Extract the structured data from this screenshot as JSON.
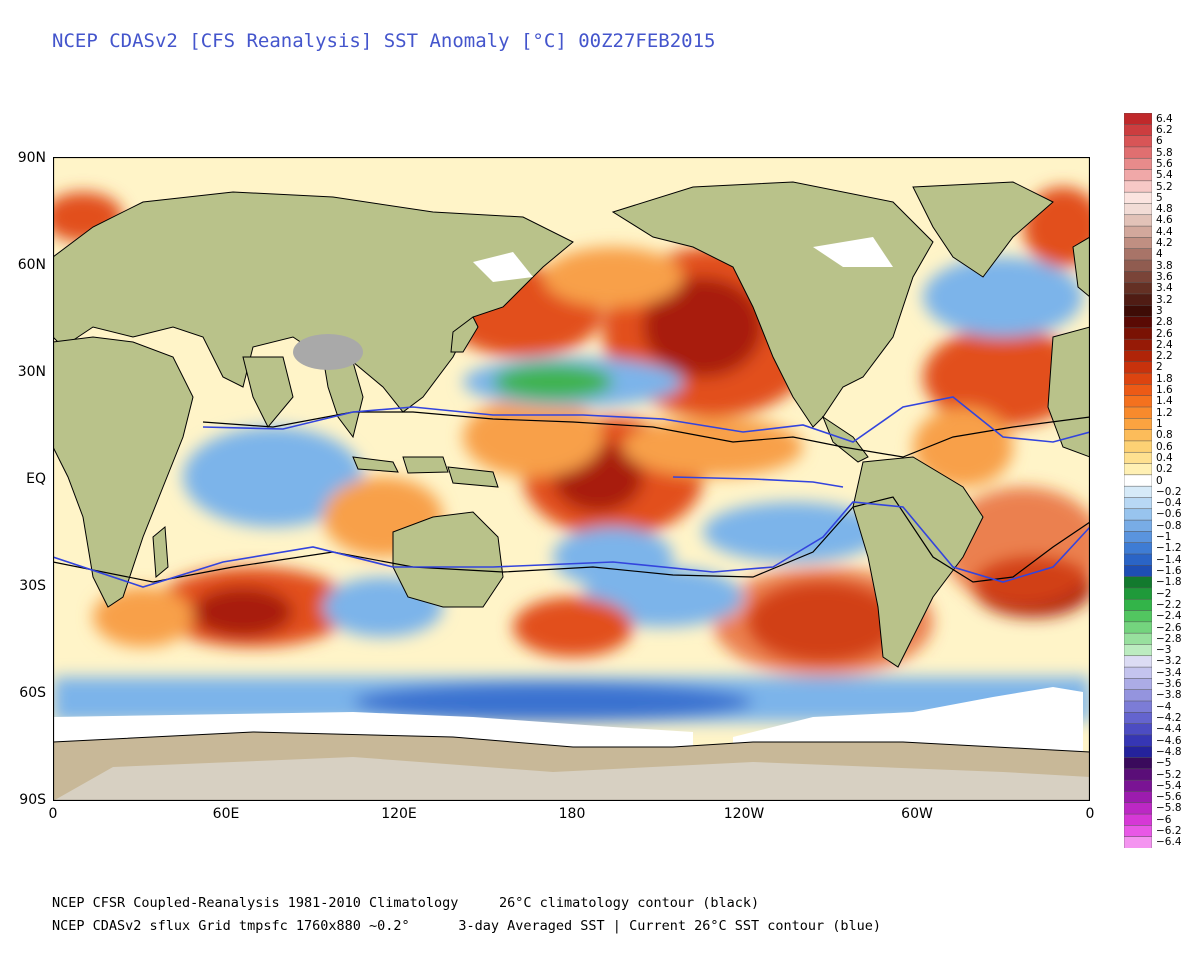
{
  "title": "NCEP CDASv2 [CFS Reanalysis] SST Anomaly [°C] 00Z27FEB2015",
  "footer": {
    "line1": "NCEP CFSR Coupled-Reanalysis 1981-2010 Climatology     26°C climatology contour (black)",
    "line2": "NCEP CDASv2 sflux Grid tmpsfc 1760x880 ~0.2°      3-day Averaged SST | Current 26°C SST contour (blue)"
  },
  "axes": {
    "y_ticks": [
      "90N",
      "60N",
      "30N",
      "EQ",
      "30S",
      "60S",
      "90S"
    ],
    "x_ticks": [
      "0",
      "60E",
      "120E",
      "180",
      "120W",
      "60W",
      "0"
    ]
  },
  "colorbar": {
    "labels": [
      "6.4",
      "6.2",
      "6",
      "5.8",
      "5.6",
      "5.4",
      "5.2",
      "5",
      "4.8",
      "4.6",
      "4.4",
      "4.2",
      "4",
      "3.8",
      "3.6",
      "3.4",
      "3.2",
      "3",
      "2.8",
      "2.6",
      "2.4",
      "2.2",
      "2",
      "1.8",
      "1.6",
      "1.4",
      "1.2",
      "1",
      "0.8",
      "0.6",
      "0.4",
      "0.2",
      "0",
      "-0.2",
      "-0.4",
      "-0.6",
      "-0.8",
      "-1",
      "-1.2",
      "-1.4",
      "-1.6",
      "-1.8",
      "-2",
      "-2.2",
      "-2.4",
      "-2.6",
      "-2.8",
      "-3",
      "-3.2",
      "-3.4",
      "-3.6",
      "-3.8",
      "-4",
      "-4.2",
      "-4.4",
      "-4.6",
      "-4.8",
      "-5",
      "-5.2",
      "-5.4",
      "-5.6",
      "-5.8",
      "-6",
      "-6.2",
      "-6.4"
    ],
    "colors": [
      "#c0282a",
      "#cc3d3f",
      "#d85556",
      "#e06f70",
      "#e88b8b",
      "#f0a8a8",
      "#f7c8c6",
      "#fbe4e0",
      "#f2dcd6",
      "#e2c2b8",
      "#d2a89c",
      "#c08f82",
      "#a87468",
      "#905c50",
      "#7a4438",
      "#643024",
      "#501c14",
      "#3e0c06",
      "#5a0a04",
      "#7a1204",
      "#961a06",
      "#b02408",
      "#c8320c",
      "#dc4410",
      "#ec5a16",
      "#f4711e",
      "#f88a2c",
      "#fba340",
      "#fcbc5a",
      "#fdd174",
      "#fee090",
      "#fff0b4",
      "#ffffff",
      "#d6eaf8",
      "#b8d8f4",
      "#98c4ee",
      "#78ace6",
      "#5a94de",
      "#3e7cd4",
      "#2a64c6",
      "#1e4eb4",
      "#137a2e",
      "#1f9a3a",
      "#33b449",
      "#52c660",
      "#74d47e",
      "#98e09e",
      "#bcecc0",
      "#dcdcf4",
      "#c4c4ee",
      "#acace6",
      "#9494de",
      "#7c7cd6",
      "#6464ce",
      "#4c4cc2",
      "#3636b4",
      "#24229c",
      "#3a0a5c",
      "#5a0e78",
      "#7a1494",
      "#9c1cae",
      "#bc28c4",
      "#d638d6",
      "#e858e6",
      "#f494f0"
    ]
  },
  "map_layers": {
    "ocean_base": "#fff4c8",
    "warm_patch": "#e2501c",
    "warm_strong": "#a81e0a",
    "warm_light": "#f8a048",
    "cool_patch": "#7cb4ea",
    "cool_strong": "#3a72d0",
    "cold_green": "#3fb34f",
    "land": "#b9c28a",
    "land_dark": "#9aa66c",
    "ice": "#ffffff",
    "antarctica": "#c8b898",
    "tibet": "#a9a9a9",
    "contour_climatology": "#000000",
    "contour_current": "#3344dd"
  }
}
